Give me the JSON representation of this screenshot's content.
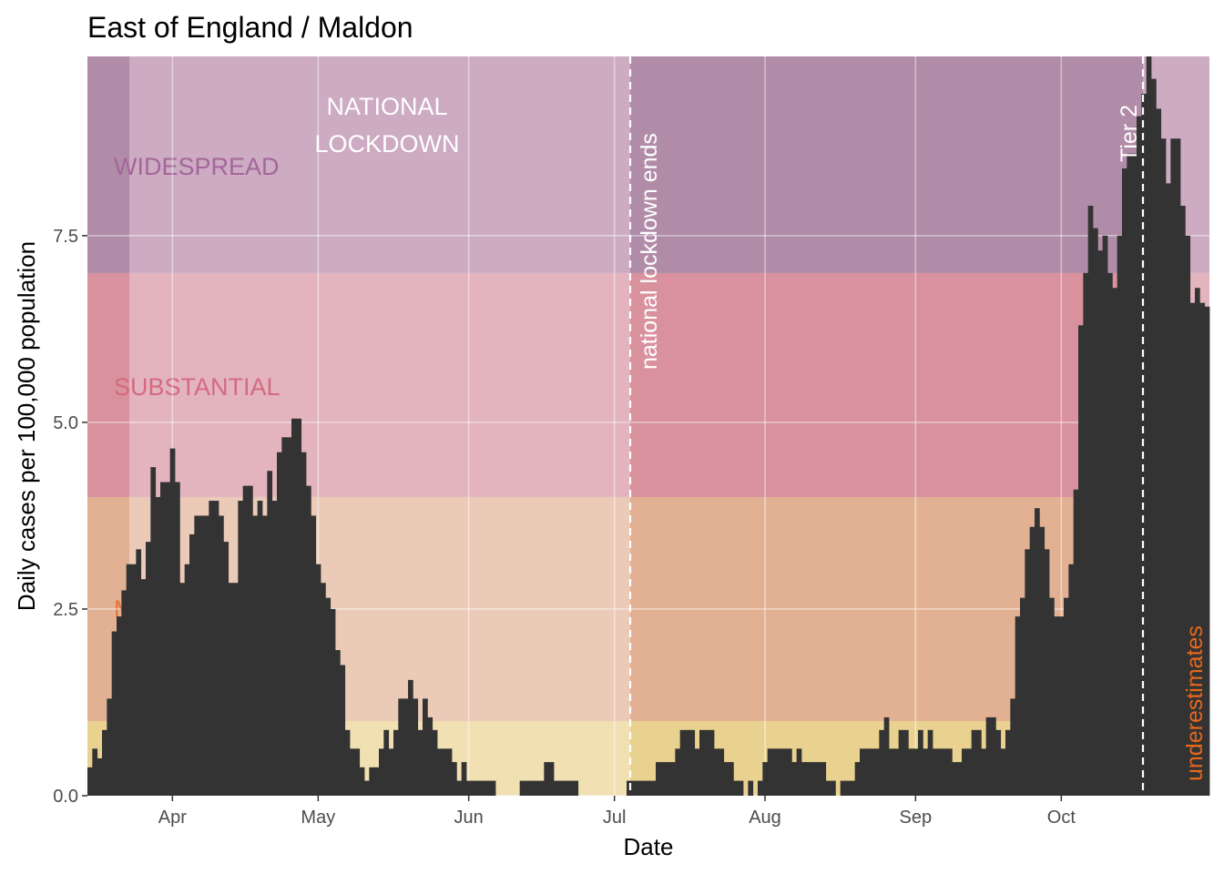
{
  "chart_data": {
    "type": "bar",
    "title": "East of England / Maldon",
    "x_label": "Date",
    "y_label": "Daily cases per 100,000 population",
    "color": "#333333",
    "ylim": [
      0,
      9.9
    ],
    "yticks": [
      {
        "value": 0,
        "label": "0.0"
      },
      2.5,
      {
        "value": 5,
        "label": "5.0"
      },
      7.5
    ],
    "grid": true,
    "bands": [
      {
        "from": 0,
        "to": 1,
        "color": "#f0e0b2",
        "color_dark": "#e9d28f"
      },
      {
        "name": "MODERATE",
        "from": 1,
        "to": 4,
        "color": "#ebcab8",
        "color_dark": "#e2b194",
        "label_color": "#e8743a"
      },
      {
        "name": "SUBSTANTIAL",
        "from": 4,
        "to": 7,
        "color": "#e3b4be",
        "color_dark": "#d8919d",
        "label_color": "#d46a80"
      },
      {
        "name": "WIDESPREAD",
        "from": 7,
        "color": "#ccabc3",
        "color_dark": "#b08ca8",
        "label_color": "#a4669a"
      }
    ],
    "annotations": {
      "lockdown": [
        "NATIONAL",
        "LOCKDOWN"
      ],
      "lockdown_ends": "national lockdown ends",
      "tier2": "Tier 2",
      "underestimates": "underestimates"
    },
    "categories": [
      null,
      null,
      null,
      null,
      null,
      null,
      null,
      null,
      null,
      null,
      null,
      null,
      null,
      null,
      null,
      null,
      null,
      "Apr",
      null,
      null,
      null,
      null,
      null,
      null,
      null,
      null,
      null,
      null,
      null,
      null,
      null,
      null,
      null,
      null,
      null,
      null,
      null,
      null,
      null,
      null,
      null,
      null,
      null,
      null,
      null,
      null,
      null,
      "May",
      null,
      null,
      null,
      null,
      null,
      null,
      null,
      null,
      null,
      null,
      null,
      null,
      null,
      null,
      null,
      null,
      null,
      null,
      null,
      null,
      null,
      null,
      null,
      null,
      null,
      null,
      null,
      null,
      null,
      null,
      "Jun",
      null,
      null,
      null,
      null,
      null,
      null,
      null,
      null,
      null,
      null,
      null,
      null,
      null,
      null,
      null,
      null,
      null,
      null,
      null,
      null,
      null,
      null,
      null,
      null,
      null,
      null,
      null,
      null,
      null,
      "Jul",
      null,
      null,
      null,
      null,
      null,
      null,
      null,
      null,
      null,
      null,
      null,
      null,
      null,
      null,
      null,
      null,
      null,
      null,
      null,
      null,
      null,
      null,
      null,
      null,
      null,
      null,
      null,
      null,
      null,
      null,
      "Aug",
      null,
      null,
      null,
      null,
      null,
      null,
      null,
      null,
      null,
      null,
      null,
      null,
      null,
      null,
      null,
      null,
      null,
      null,
      null,
      null,
      null,
      null,
      null,
      null,
      null,
      null,
      null,
      null,
      null,
      null,
      "Sep",
      null,
      null,
      null,
      null,
      null,
      null,
      null,
      null,
      null,
      null,
      null,
      null,
      null,
      null,
      null,
      null,
      null,
      null,
      null,
      null,
      null,
      null,
      null,
      null,
      null,
      null,
      null,
      null,
      null,
      "Oct",
      null,
      null,
      null,
      null,
      null,
      null,
      null,
      null,
      null,
      null,
      null,
      null,
      null,
      null,
      null,
      null,
      null,
      null,
      null,
      null,
      null,
      null,
      null,
      null,
      null,
      null,
      null,
      null,
      null,
      null
    ],
    "values": [
      0.38,
      0.63,
      0.5,
      0.88,
      1.3,
      2.2,
      2.4,
      2.75,
      3.1,
      3.1,
      3.3,
      2.9,
      3.4,
      4.4,
      4.0,
      4.2,
      4.2,
      4.65,
      4.2,
      2.85,
      3.1,
      3.5,
      3.75,
      3.75,
      3.75,
      3.95,
      3.95,
      3.75,
      3.4,
      2.85,
      2.85,
      3.95,
      4.15,
      4.15,
      3.75,
      3.95,
      3.75,
      4.35,
      3.95,
      4.6,
      4.8,
      4.8,
      5.05,
      5.05,
      4.6,
      4.15,
      3.75,
      3.1,
      2.85,
      2.65,
      2.5,
      1.95,
      1.75,
      0.88,
      0.63,
      0.63,
      0.38,
      0.2,
      0.38,
      0.38,
      0.63,
      0.88,
      0.63,
      0.88,
      1.3,
      1.3,
      1.55,
      1.3,
      0.88,
      1.3,
      1.05,
      0.88,
      0.63,
      0.63,
      0.63,
      0.45,
      0.2,
      0.45,
      0.2,
      0.2,
      0.2,
      0.2,
      0.2,
      0.2,
      0,
      0,
      0,
      0,
      0,
      0.2,
      0.2,
      0.2,
      0.2,
      0.2,
      0.45,
      0.45,
      0.2,
      0.2,
      0.2,
      0.2,
      0.2,
      0,
      0,
      0,
      0,
      0,
      0,
      0,
      0,
      0,
      0,
      0.2,
      0.2,
      0.2,
      0.2,
      0.2,
      0.2,
      0.45,
      0.45,
      0.45,
      0.45,
      0.63,
      0.88,
      0.88,
      0.88,
      0.63,
      0.88,
      0.88,
      0.88,
      0.63,
      0.63,
      0.45,
      0.45,
      0.2,
      0.2,
      0,
      0.2,
      0,
      0.2,
      0.45,
      0.63,
      0.63,
      0.63,
      0.63,
      0.63,
      0.45,
      0.63,
      0.45,
      0.45,
      0.45,
      0.45,
      0.45,
      0.2,
      0.2,
      0,
      0.2,
      0.2,
      0.2,
      0.45,
      0.63,
      0.63,
      0.63,
      0.63,
      0.88,
      1.05,
      0.63,
      0.63,
      0.88,
      0.88,
      0.63,
      0.63,
      0.88,
      0.63,
      0.88,
      0.63,
      0.63,
      0.63,
      0.63,
      0.45,
      0.45,
      0.63,
      0.63,
      0.88,
      0.88,
      0.63,
      1.05,
      1.05,
      0.88,
      0.63,
      0.88,
      1.3,
      2.4,
      2.65,
      3.3,
      3.6,
      3.85,
      3.6,
      3.3,
      2.65,
      2.4,
      2.4,
      2.65,
      3.1,
      4.1,
      6.3,
      7.0,
      7.9,
      7.6,
      7.3,
      7.5,
      7.0,
      6.8,
      7.5,
      8.4,
      8.6,
      8.6,
      9.1,
      9.4,
      9.9,
      9.6,
      9.2,
      8.8,
      8.2,
      8.8,
      8.8,
      7.9,
      7.5,
      6.6,
      6.8,
      6.6,
      6.55
    ]
  }
}
